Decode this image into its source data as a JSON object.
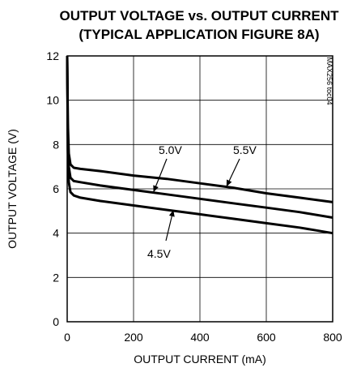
{
  "chart_data": {
    "type": "line",
    "title_line1": "OUTPUT VOLTAGE vs. OUTPUT CURRENT",
    "title_line2": "(TYPICAL APPLICATION FIGURE 8A)",
    "xlabel": "OUTPUT CURRENT (mA)",
    "ylabel": "OUTPUT VOLTAGE (V)",
    "xlim": [
      0,
      800
    ],
    "ylim": [
      0,
      12
    ],
    "x_ticks": [
      0,
      200,
      400,
      600,
      800
    ],
    "y_ticks": [
      0,
      2,
      4,
      6,
      8,
      10,
      12
    ],
    "grid": true,
    "figure_code": "MAX256 toc04",
    "series": [
      {
        "name": "5.5V",
        "x": [
          0,
          2,
          5,
          10,
          20,
          40,
          100,
          200,
          300,
          400,
          500,
          600,
          700,
          800
        ],
        "values": [
          12,
          9.0,
          7.6,
          7.1,
          6.95,
          6.9,
          6.8,
          6.6,
          6.45,
          6.25,
          6.05,
          5.8,
          5.6,
          5.4
        ]
      },
      {
        "name": "5.0V",
        "x": [
          0,
          2,
          5,
          10,
          20,
          40,
          100,
          200,
          300,
          400,
          500,
          600,
          700,
          800
        ],
        "values": [
          12,
          8.5,
          7.0,
          6.5,
          6.35,
          6.3,
          6.15,
          5.95,
          5.75,
          5.55,
          5.35,
          5.15,
          4.95,
          4.7
        ]
      },
      {
        "name": "4.5V",
        "x": [
          0,
          2,
          5,
          10,
          20,
          40,
          100,
          200,
          300,
          400,
          500,
          600,
          700,
          800
        ],
        "values": [
          12,
          7.8,
          6.3,
          5.85,
          5.7,
          5.6,
          5.45,
          5.25,
          5.05,
          4.85,
          4.65,
          4.45,
          4.25,
          4.0
        ]
      }
    ],
    "annotations": [
      {
        "text": "5.5V",
        "arrow_to": [
          480,
          6.1
        ]
      },
      {
        "text": "5.0V",
        "arrow_to": [
          260,
          5.85
        ]
      },
      {
        "text": "4.5V",
        "arrow_to": [
          320,
          5.05
        ]
      }
    ]
  }
}
